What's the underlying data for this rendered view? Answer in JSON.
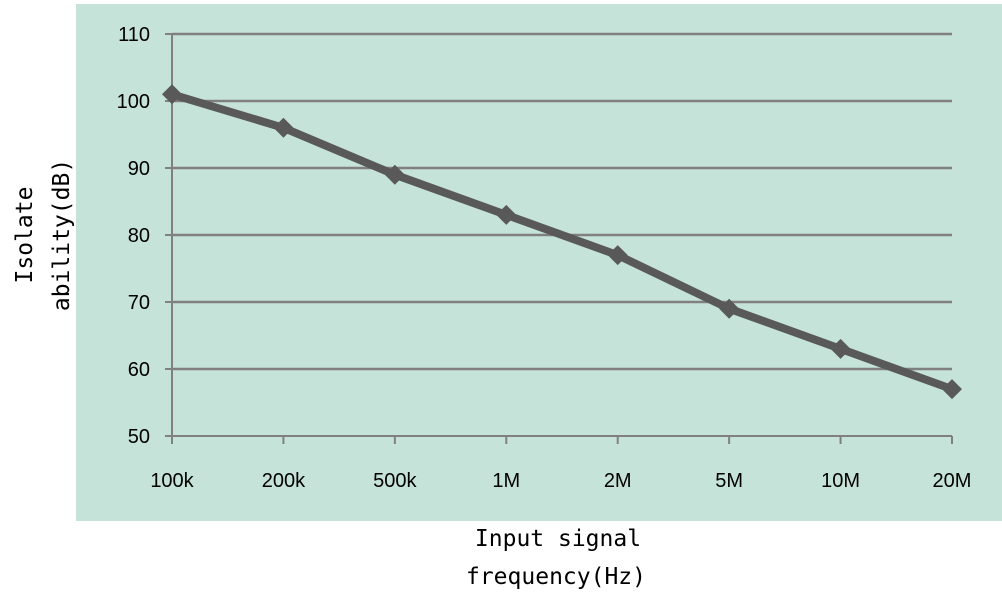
{
  "chart_data": {
    "type": "line",
    "title": "",
    "xlabel_lines": [
      "Input signal",
      "frequency(Hz)"
    ],
    "ylabel_lines": [
      "Isolate",
      "ability(dB)"
    ],
    "categories": [
      "100k",
      "200k",
      "500k",
      "1M",
      "2M",
      "5M",
      "10M",
      "20M"
    ],
    "series": [
      {
        "values": [
          101,
          96,
          89,
          83,
          77,
          69,
          63,
          57
        ]
      }
    ],
    "ylim": [
      50,
      110
    ],
    "yticks": [
      50,
      60,
      70,
      80,
      90,
      100,
      110
    ],
    "grid": true,
    "legend": "none",
    "marker": "diamond"
  },
  "colors": {
    "plot_background": "#c5e3d9",
    "line": "#595959",
    "gridline": "#808080",
    "axis": "#808080"
  }
}
